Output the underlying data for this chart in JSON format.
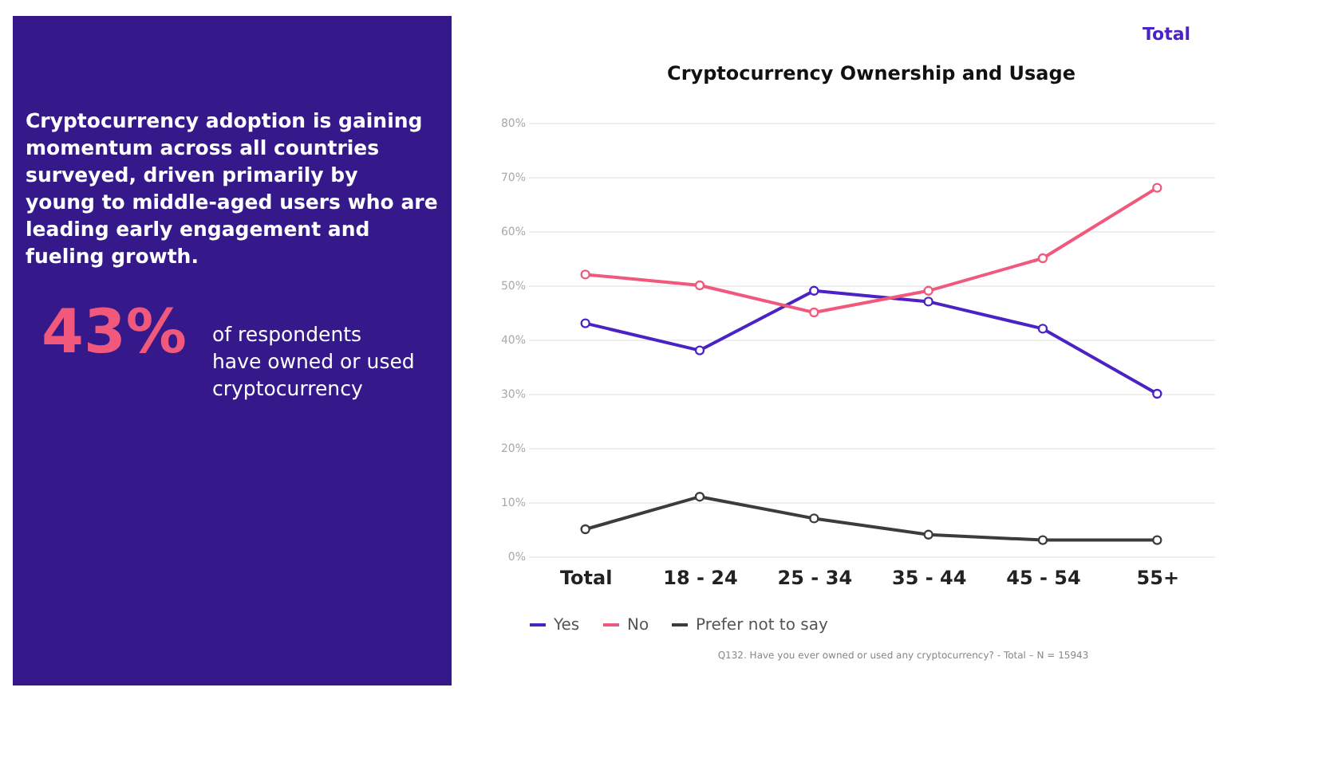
{
  "chart_data": {
    "type": "line",
    "title": "Cryptocurrency Ownership and Usage",
    "categories": [
      "Total",
      "18 - 24",
      "25 - 34",
      "35 - 44",
      "45 - 54",
      "55+"
    ],
    "series": [
      {
        "name": "Yes",
        "color": "#4b22c4",
        "values": [
          43,
          38,
          49,
          47,
          42,
          30
        ]
      },
      {
        "name": "No",
        "color": "#f0587c",
        "values": [
          52,
          50,
          45,
          49,
          55,
          68
        ]
      },
      {
        "name": "Prefer not to say",
        "color": "#3c3c3c",
        "values": [
          5,
          11,
          7,
          4,
          3,
          3
        ]
      }
    ],
    "ylim": [
      0,
      80
    ],
    "yticks": [
      {
        "value": 0,
        "label": "0%"
      },
      {
        "value": 10,
        "label": "10%"
      },
      {
        "value": 20,
        "label": "20%"
      },
      {
        "value": 30,
        "label": "30%"
      },
      {
        "value": 40,
        "label": "40%"
      },
      {
        "value": 50,
        "label": "50%"
      },
      {
        "value": 60,
        "label": "60%"
      },
      {
        "value": 70,
        "label": "70%"
      },
      {
        "value": 80,
        "label": "80%"
      }
    ],
    "grid": "y",
    "legend": "bottom",
    "marker": "circle",
    "line_style": "solid",
    "annotations": [
      "Total",
      "Cryptocurrency adoption is gaining momentum across all countries surveyed, driven primarily by young to middle-aged users who are leading early engagement and fueling growth.",
      "43%",
      "of respondents have owned or used cryptocurrency",
      "Q132. Have you ever owned or used any cryptocurrency? -  Total  –  N = 15943"
    ]
  }
}
